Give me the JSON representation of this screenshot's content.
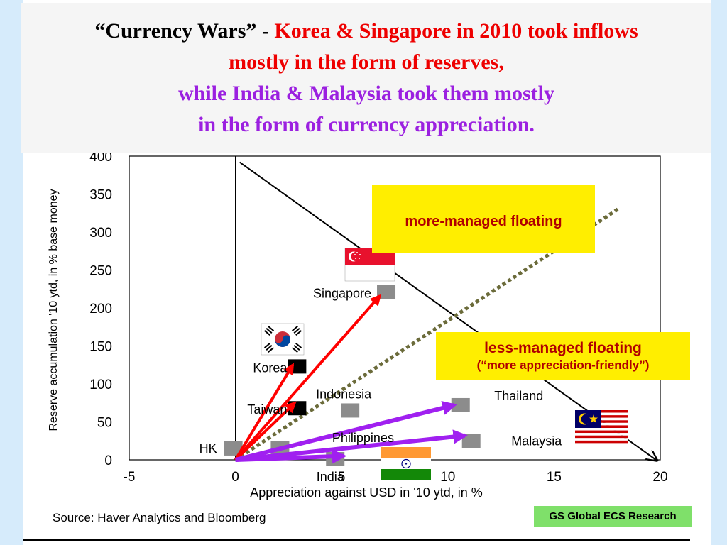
{
  "title": {
    "part1": "“Currency Wars” - ",
    "part2": "Korea & Singapore in 2010 took inflows",
    "part3": "mostly in the form of reserves,",
    "part4": "while India & Malaysia took them mostly",
    "part5": "in the form of currency appreciation."
  },
  "colors": {
    "title_black": "#000000",
    "title_red": "#ee0000",
    "title_purple": "#9b20e0",
    "red_arrow": "#ff0000",
    "purple_arrow": "#a020f0",
    "dotted_line": "#6b6b3a",
    "gray_marker": "#8c8c8c",
    "black_marker": "#000000",
    "box_fill": "#ffee00",
    "box_text": "#b00000",
    "badge_fill": "#7fe06a"
  },
  "boxes": {
    "more_managed": "more-managed floating",
    "less_managed": "less-managed floating",
    "less_managed_sub": "(“more appreciation-friendly”)"
  },
  "source": "Source: Haver Analytics and Bloomberg",
  "badge": "GS Global ECS Research",
  "chart_data": {
    "type": "scatter",
    "xlabel": "Appreciation against USD in '10 ytd, in %",
    "ylabel": "Reserve accumulation '10 ytd, in % base money",
    "xlim": [
      -5,
      20
    ],
    "ylim": [
      0,
      400
    ],
    "x_ticks": [
      -5,
      0,
      5,
      10,
      15,
      20
    ],
    "y_ticks": [
      0,
      50,
      100,
      150,
      200,
      250,
      300,
      350,
      400
    ],
    "points": [
      {
        "label": "Singapore",
        "x": 7.1,
        "y": 221,
        "marker": "gray",
        "flag": "singapore-flag"
      },
      {
        "label": "Korea",
        "x": 2.9,
        "y": 123,
        "marker": "black",
        "flag": "korea-flag"
      },
      {
        "label": "Taiwan",
        "x": 2.9,
        "y": 68,
        "marker": "black"
      },
      {
        "label": "Indonesia",
        "x": 5.4,
        "y": 65,
        "marker": "gray"
      },
      {
        "label": "Thailand",
        "x": 10.6,
        "y": 72,
        "marker": "gray"
      },
      {
        "label": "Philippines",
        "x": 2.1,
        "y": 15,
        "marker": "gray"
      },
      {
        "label": "Malaysia",
        "x": 11.1,
        "y": 25,
        "marker": "gray",
        "flag": "malaysia-flag"
      },
      {
        "label": "HK",
        "x": -0.1,
        "y": 15,
        "marker": "gray"
      },
      {
        "label": "India",
        "x": 4.7,
        "y": 1,
        "marker": "gray",
        "flag": "india-flag"
      }
    ],
    "lines": [
      {
        "name": "diagonal",
        "style": "solid",
        "from": [
          0.2,
          392
        ],
        "to": [
          19.8,
          0
        ]
      },
      {
        "name": "managed-boundary",
        "style": "dotted",
        "from": [
          0,
          0
        ],
        "to": [
          18,
          330
        ]
      }
    ],
    "red_arrows": [
      {
        "from": [
          0,
          0
        ],
        "to": [
          6.8,
          216
        ]
      },
      {
        "from": [
          0,
          0
        ],
        "to": [
          2.7,
          125
        ]
      },
      {
        "from": [
          0,
          0
        ],
        "to": [
          2.8,
          75
        ]
      }
    ],
    "purple_arrows": [
      {
        "from": [
          0,
          0
        ],
        "to": [
          10.3,
          72
        ]
      },
      {
        "from": [
          0,
          0
        ],
        "to": [
          10.8,
          32
        ]
      },
      {
        "from": [
          0,
          0
        ],
        "to": [
          5.1,
          5
        ]
      }
    ]
  }
}
